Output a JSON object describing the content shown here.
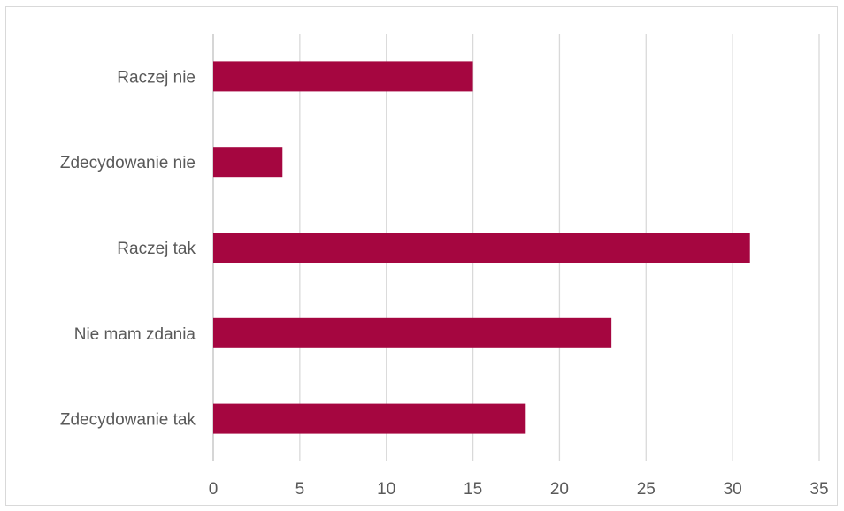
{
  "chart_data": {
    "type": "bar",
    "orientation": "horizontal",
    "categories": [
      "Raczej nie",
      "Zdecydowanie nie",
      "Raczej tak",
      "Nie mam zdania",
      "Zdecydowanie tak"
    ],
    "values": [
      15,
      4,
      31,
      23,
      18
    ],
    "xlim": [
      0,
      35
    ],
    "xticks": [
      0,
      5,
      10,
      15,
      20,
      25,
      30,
      35
    ],
    "bar_color": "#a50640",
    "grid_color": "#d9d9d9",
    "grid": true,
    "legend": "none"
  }
}
